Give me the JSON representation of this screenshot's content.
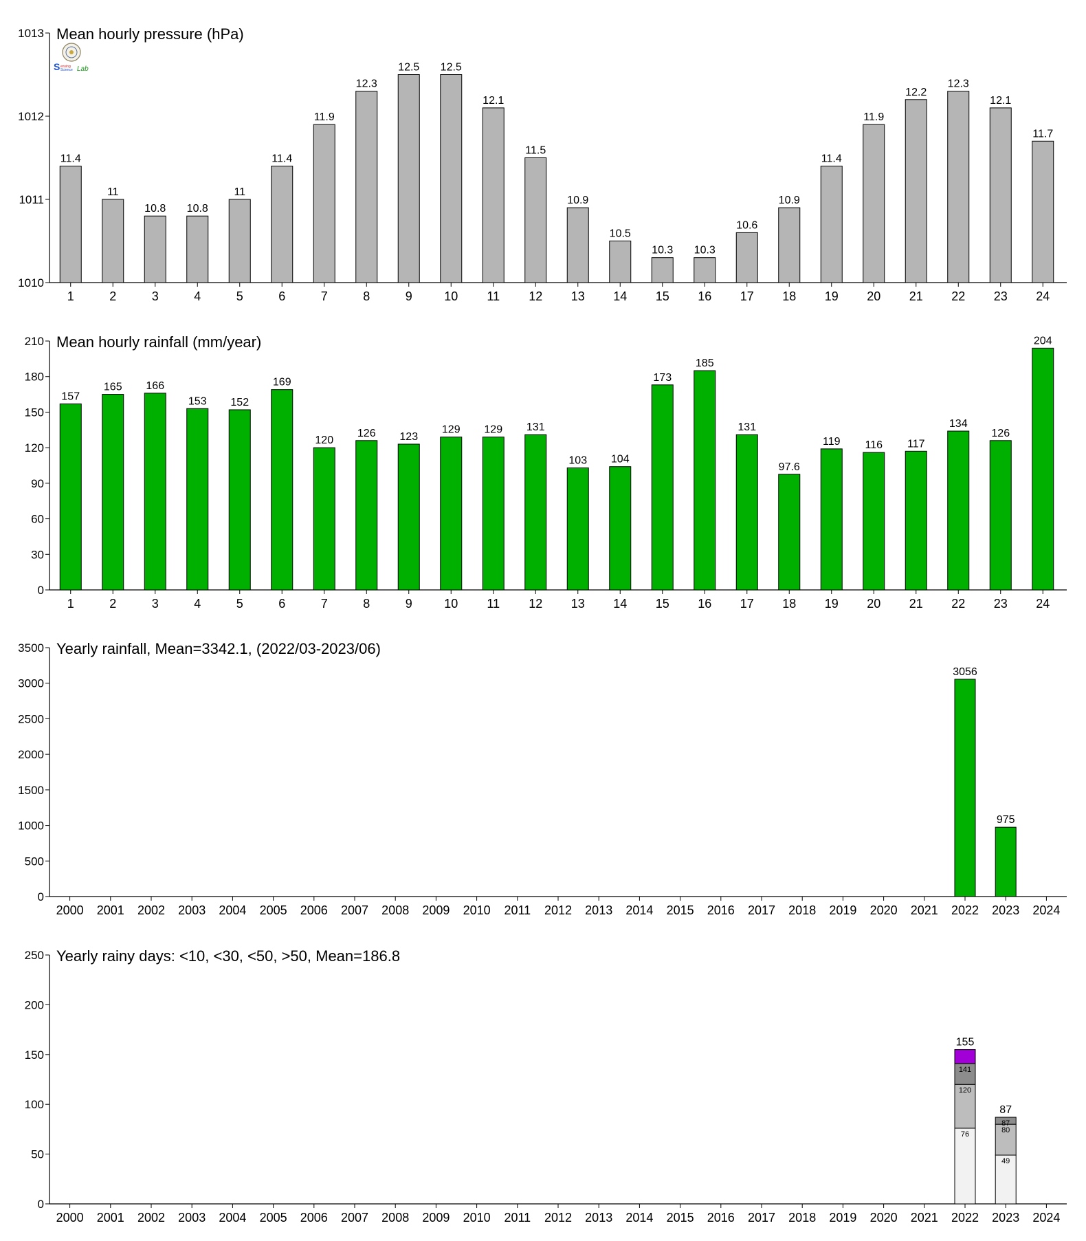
{
  "colors": {
    "pressure_bar": "#b5b5b5",
    "rain_bar": "#00b000",
    "days_lt10": "#f2f2f2",
    "days_lt30": "#bdbdbd",
    "days_lt50": "#8c8c8c",
    "days_gt50": "#a100d6",
    "axis": "#000000"
  },
  "logo": {
    "text_s": "S",
    "text_rest": "ensing",
    "text_science": "Science",
    "text_lab": "Lab"
  },
  "chart_data": [
    {
      "type": "bar",
      "title": "Mean hourly pressure (hPa)",
      "categories": [
        "1",
        "2",
        "3",
        "4",
        "5",
        "6",
        "7",
        "8",
        "9",
        "10",
        "11",
        "12",
        "13",
        "14",
        "15",
        "16",
        "17",
        "18",
        "19",
        "20",
        "21",
        "22",
        "23",
        "24"
      ],
      "values": [
        1011.4,
        1011.0,
        1010.8,
        1010.8,
        1011.0,
        1011.4,
        1011.9,
        1012.3,
        1012.5,
        1012.5,
        1012.1,
        1011.5,
        1010.9,
        1010.5,
        1010.3,
        1010.3,
        1010.6,
        1010.9,
        1011.4,
        1011.9,
        1012.2,
        1012.3,
        1012.1,
        1011.7
      ],
      "data_labels": [
        "11.4",
        "11",
        "10.8",
        "10.8",
        "11",
        "11.4",
        "11.9",
        "12.3",
        "12.5",
        "12.5",
        "12.1",
        "11.5",
        "10.9",
        "10.5",
        "10.3",
        "10.3",
        "10.6",
        "10.9",
        "11.4",
        "11.9",
        "12.2",
        "12.3",
        "12.1",
        "11.7"
      ],
      "ylim": [
        1010,
        1013
      ],
      "yticks": [
        1010,
        1011,
        1012,
        1013
      ],
      "grid": false
    },
    {
      "type": "bar",
      "title": "Mean hourly rainfall (mm/year)",
      "categories": [
        "1",
        "2",
        "3",
        "4",
        "5",
        "6",
        "7",
        "8",
        "9",
        "10",
        "11",
        "12",
        "13",
        "14",
        "15",
        "16",
        "17",
        "18",
        "19",
        "20",
        "21",
        "22",
        "23",
        "24"
      ],
      "values": [
        157,
        165,
        166,
        153,
        152,
        169,
        120,
        126,
        123,
        129,
        129,
        131,
        103,
        104,
        173,
        185,
        131,
        97.6,
        119,
        116,
        117,
        134,
        126,
        204
      ],
      "data_labels": [
        "157",
        "165",
        "166",
        "153",
        "152",
        "169",
        "120",
        "126",
        "123",
        "129",
        "129",
        "131",
        "103",
        "104",
        "173",
        "185",
        "131",
        "97.6",
        "119",
        "116",
        "117",
        "134",
        "126",
        "204"
      ],
      "ylim": [
        0,
        210
      ],
      "yticks": [
        0,
        30,
        60,
        90,
        120,
        150,
        180,
        210
      ],
      "grid": false
    },
    {
      "type": "bar",
      "title": "Yearly rainfall, Mean=3342.1, (2022/03-2023/06)",
      "categories": [
        "2000",
        "2001",
        "2002",
        "2003",
        "2004",
        "2005",
        "2006",
        "2007",
        "2008",
        "2009",
        "2010",
        "2011",
        "2012",
        "2013",
        "2014",
        "2015",
        "2016",
        "2017",
        "2018",
        "2019",
        "2020",
        "2021",
        "2022",
        "2023",
        "2024"
      ],
      "values": [
        null,
        null,
        null,
        null,
        null,
        null,
        null,
        null,
        null,
        null,
        null,
        null,
        null,
        null,
        null,
        null,
        null,
        null,
        null,
        null,
        null,
        null,
        3056,
        975,
        null
      ],
      "data_labels": [
        "",
        "",
        "",
        "",
        "",
        "",
        "",
        "",
        "",
        "",
        "",
        "",
        "",
        "",
        "",
        "",
        "",
        "",
        "",
        "",
        "",
        "",
        "3056",
        "975",
        ""
      ],
      "ylim": [
        0,
        3500
      ],
      "yticks": [
        0,
        500,
        1000,
        1500,
        2000,
        2500,
        3000,
        3500
      ],
      "grid": false
    },
    {
      "type": "bar",
      "stacked": true,
      "title": "Yearly rainy days: <10, <30, <50, >50, Mean=186.8",
      "categories": [
        "2000",
        "2001",
        "2002",
        "2003",
        "2004",
        "2005",
        "2006",
        "2007",
        "2008",
        "2009",
        "2010",
        "2011",
        "2012",
        "2013",
        "2014",
        "2015",
        "2016",
        "2017",
        "2018",
        "2019",
        "2020",
        "2021",
        "2022",
        "2023",
        "2024"
      ],
      "stacks": [
        {
          "category": "2022",
          "levels": [
            76,
            120,
            141,
            155
          ],
          "segment_labels": [
            "76",
            "120",
            "141"
          ],
          "total_label": "155"
        },
        {
          "category": "2023",
          "levels": [
            49,
            80,
            87,
            87
          ],
          "segment_labels": [
            "49",
            "80",
            "87"
          ],
          "total_label": "87"
        }
      ],
      "ylim": [
        0,
        250
      ],
      "yticks": [
        0,
        50,
        100,
        150,
        200,
        250
      ],
      "grid": false
    }
  ]
}
